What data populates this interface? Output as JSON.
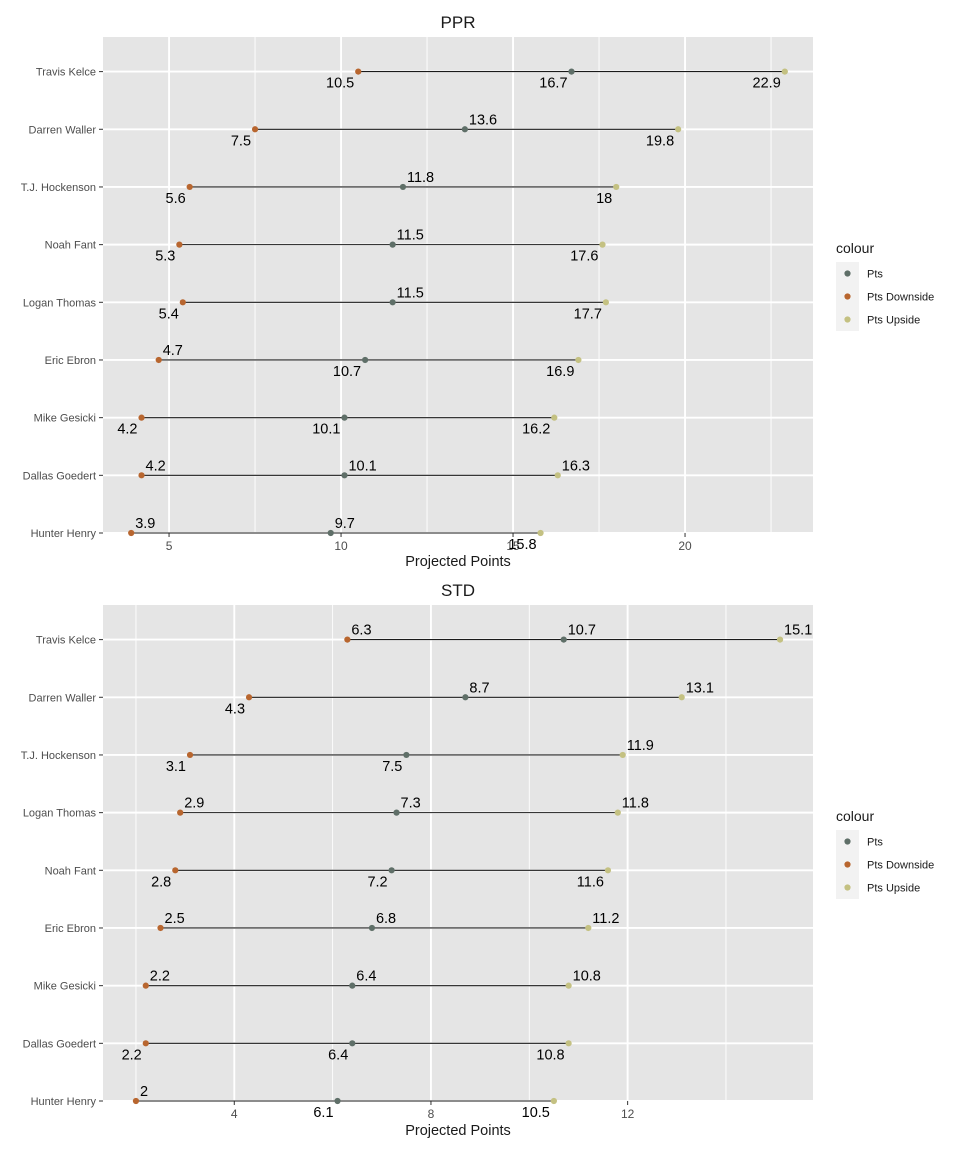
{
  "colors": {
    "Pts": "#5f6f68",
    "Pts Downside": "#b8662f",
    "Pts Upside": "#c4c182",
    "segment": "#1a1a1a",
    "panel_bg": "#e5e5e5",
    "grid": "#ffffff"
  },
  "chart_data": [
    {
      "type": "dumbbell",
      "title": "PPR",
      "xlabel": "Projected Points",
      "ylabel": "",
      "xlim": [
        3.08,
        23.72
      ],
      "xticks": [
        5,
        10,
        15,
        20
      ],
      "grid": true,
      "legend": {
        "title": "colour",
        "position": "right",
        "entries": [
          "Pts",
          "Pts Downside",
          "Pts Upside"
        ]
      },
      "categories": [
        "Travis Kelce",
        "Darren Waller",
        "T.J. Hockenson",
        "Noah Fant",
        "Logan Thomas",
        "Eric Ebron",
        "Mike Gesicki",
        "Dallas Goedert",
        "Hunter Henry"
      ],
      "series": [
        {
          "name": "Pts",
          "values": [
            16.7,
            13.6,
            11.8,
            11.5,
            11.5,
            10.7,
            10.1,
            10.1,
            9.7
          ],
          "label_pos": [
            "below",
            "above",
            "above",
            "above",
            "above",
            "below",
            "below",
            "above",
            "above"
          ]
        },
        {
          "name": "Pts Downside",
          "values": [
            10.5,
            7.5,
            5.6,
            5.3,
            5.4,
            4.7,
            4.2,
            4.2,
            3.9
          ],
          "label_pos": [
            "below",
            "below",
            "below",
            "below",
            "below",
            "above",
            "below",
            "above",
            "above"
          ]
        },
        {
          "name": "Pts Upside",
          "values": [
            22.9,
            19.8,
            18,
            17.6,
            17.7,
            16.9,
            16.2,
            16.3,
            15.8
          ],
          "label_pos": [
            "below",
            "below",
            "below",
            "below",
            "below",
            "below",
            "below",
            "above",
            "below"
          ]
        }
      ]
    },
    {
      "type": "dumbbell",
      "title": "STD",
      "xlabel": "Projected Points",
      "ylabel": "",
      "xlim": [
        1.33,
        15.77
      ],
      "xticks": [
        4,
        8,
        12
      ],
      "grid": true,
      "legend": {
        "title": "colour",
        "position": "right",
        "entries": [
          "Pts",
          "Pts Downside",
          "Pts Upside"
        ]
      },
      "categories": [
        "Travis Kelce",
        "Darren Waller",
        "T.J. Hockenson",
        "Logan Thomas",
        "Noah Fant",
        "Eric Ebron",
        "Mike Gesicki",
        "Dallas Goedert",
        "Hunter Henry"
      ],
      "series": [
        {
          "name": "Pts",
          "values": [
            10.7,
            8.7,
            7.5,
            7.3,
            7.2,
            6.8,
            6.4,
            6.4,
            6.1
          ],
          "label_pos": [
            "above",
            "above",
            "below",
            "above",
            "below",
            "above",
            "above",
            "below",
            "below"
          ]
        },
        {
          "name": "Pts Downside",
          "values": [
            6.3,
            4.3,
            3.1,
            2.9,
            2.8,
            2.5,
            2.2,
            2.2,
            2
          ],
          "label_pos": [
            "above",
            "below",
            "below",
            "above",
            "below",
            "above",
            "above",
            "below",
            "above"
          ]
        },
        {
          "name": "Pts Upside",
          "values": [
            15.1,
            13.1,
            11.9,
            11.8,
            11.6,
            11.2,
            10.8,
            10.8,
            10.5
          ],
          "label_pos": [
            "above",
            "above",
            "above",
            "above",
            "below",
            "above",
            "above",
            "below",
            "below"
          ]
        }
      ]
    }
  ]
}
